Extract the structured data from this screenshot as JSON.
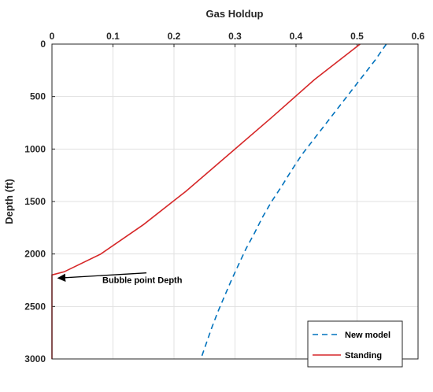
{
  "chart_data": {
    "type": "line",
    "xlabel": "Gas Holdup",
    "ylabel": "Depth (ft)",
    "xlim": [
      0,
      0.6
    ],
    "ylim": [
      0,
      3000
    ],
    "x_axis_position": "top",
    "y_axis_reversed": true,
    "xticks": [
      "0",
      "0.1",
      "0.2",
      "0.3",
      "0.4",
      "0.5",
      "0.6"
    ],
    "yticks": [
      "0",
      "500",
      "1000",
      "1500",
      "2000",
      "2500",
      "3000"
    ],
    "grid": true,
    "legend_position": "bottom-right",
    "series": [
      {
        "name": "New model",
        "style": "dashed",
        "color": "#0072BD",
        "points": [
          [
            0.548,
            0
          ],
          [
            0.53,
            150
          ],
          [
            0.51,
            300
          ],
          [
            0.49,
            450
          ],
          [
            0.47,
            600
          ],
          [
            0.45,
            750
          ],
          [
            0.43,
            900
          ],
          [
            0.41,
            1050
          ],
          [
            0.393,
            1200
          ],
          [
            0.377,
            1350
          ],
          [
            0.36,
            1500
          ],
          [
            0.345,
            1650
          ],
          [
            0.332,
            1800
          ],
          [
            0.318,
            1950
          ],
          [
            0.306,
            2100
          ],
          [
            0.294,
            2250
          ],
          [
            0.283,
            2400
          ],
          [
            0.272,
            2550
          ],
          [
            0.262,
            2700
          ],
          [
            0.253,
            2850
          ],
          [
            0.244,
            3000
          ]
        ]
      },
      {
        "name": "Standing",
        "style": "solid",
        "color": "#D62728",
        "points": [
          [
            0.505,
            0
          ],
          [
            0.43,
            340
          ],
          [
            0.36,
            700
          ],
          [
            0.29,
            1050
          ],
          [
            0.22,
            1400
          ],
          [
            0.15,
            1720
          ],
          [
            0.08,
            2000
          ],
          [
            0.02,
            2170
          ],
          [
            0.0,
            2200
          ],
          [
            0.0,
            3000
          ]
        ]
      }
    ],
    "annotations": [
      {
        "text": "Bubble point Depth",
        "x": 0.08,
        "y": 2450,
        "arrow_to": [
          0.01,
          2230
        ]
      }
    ]
  }
}
